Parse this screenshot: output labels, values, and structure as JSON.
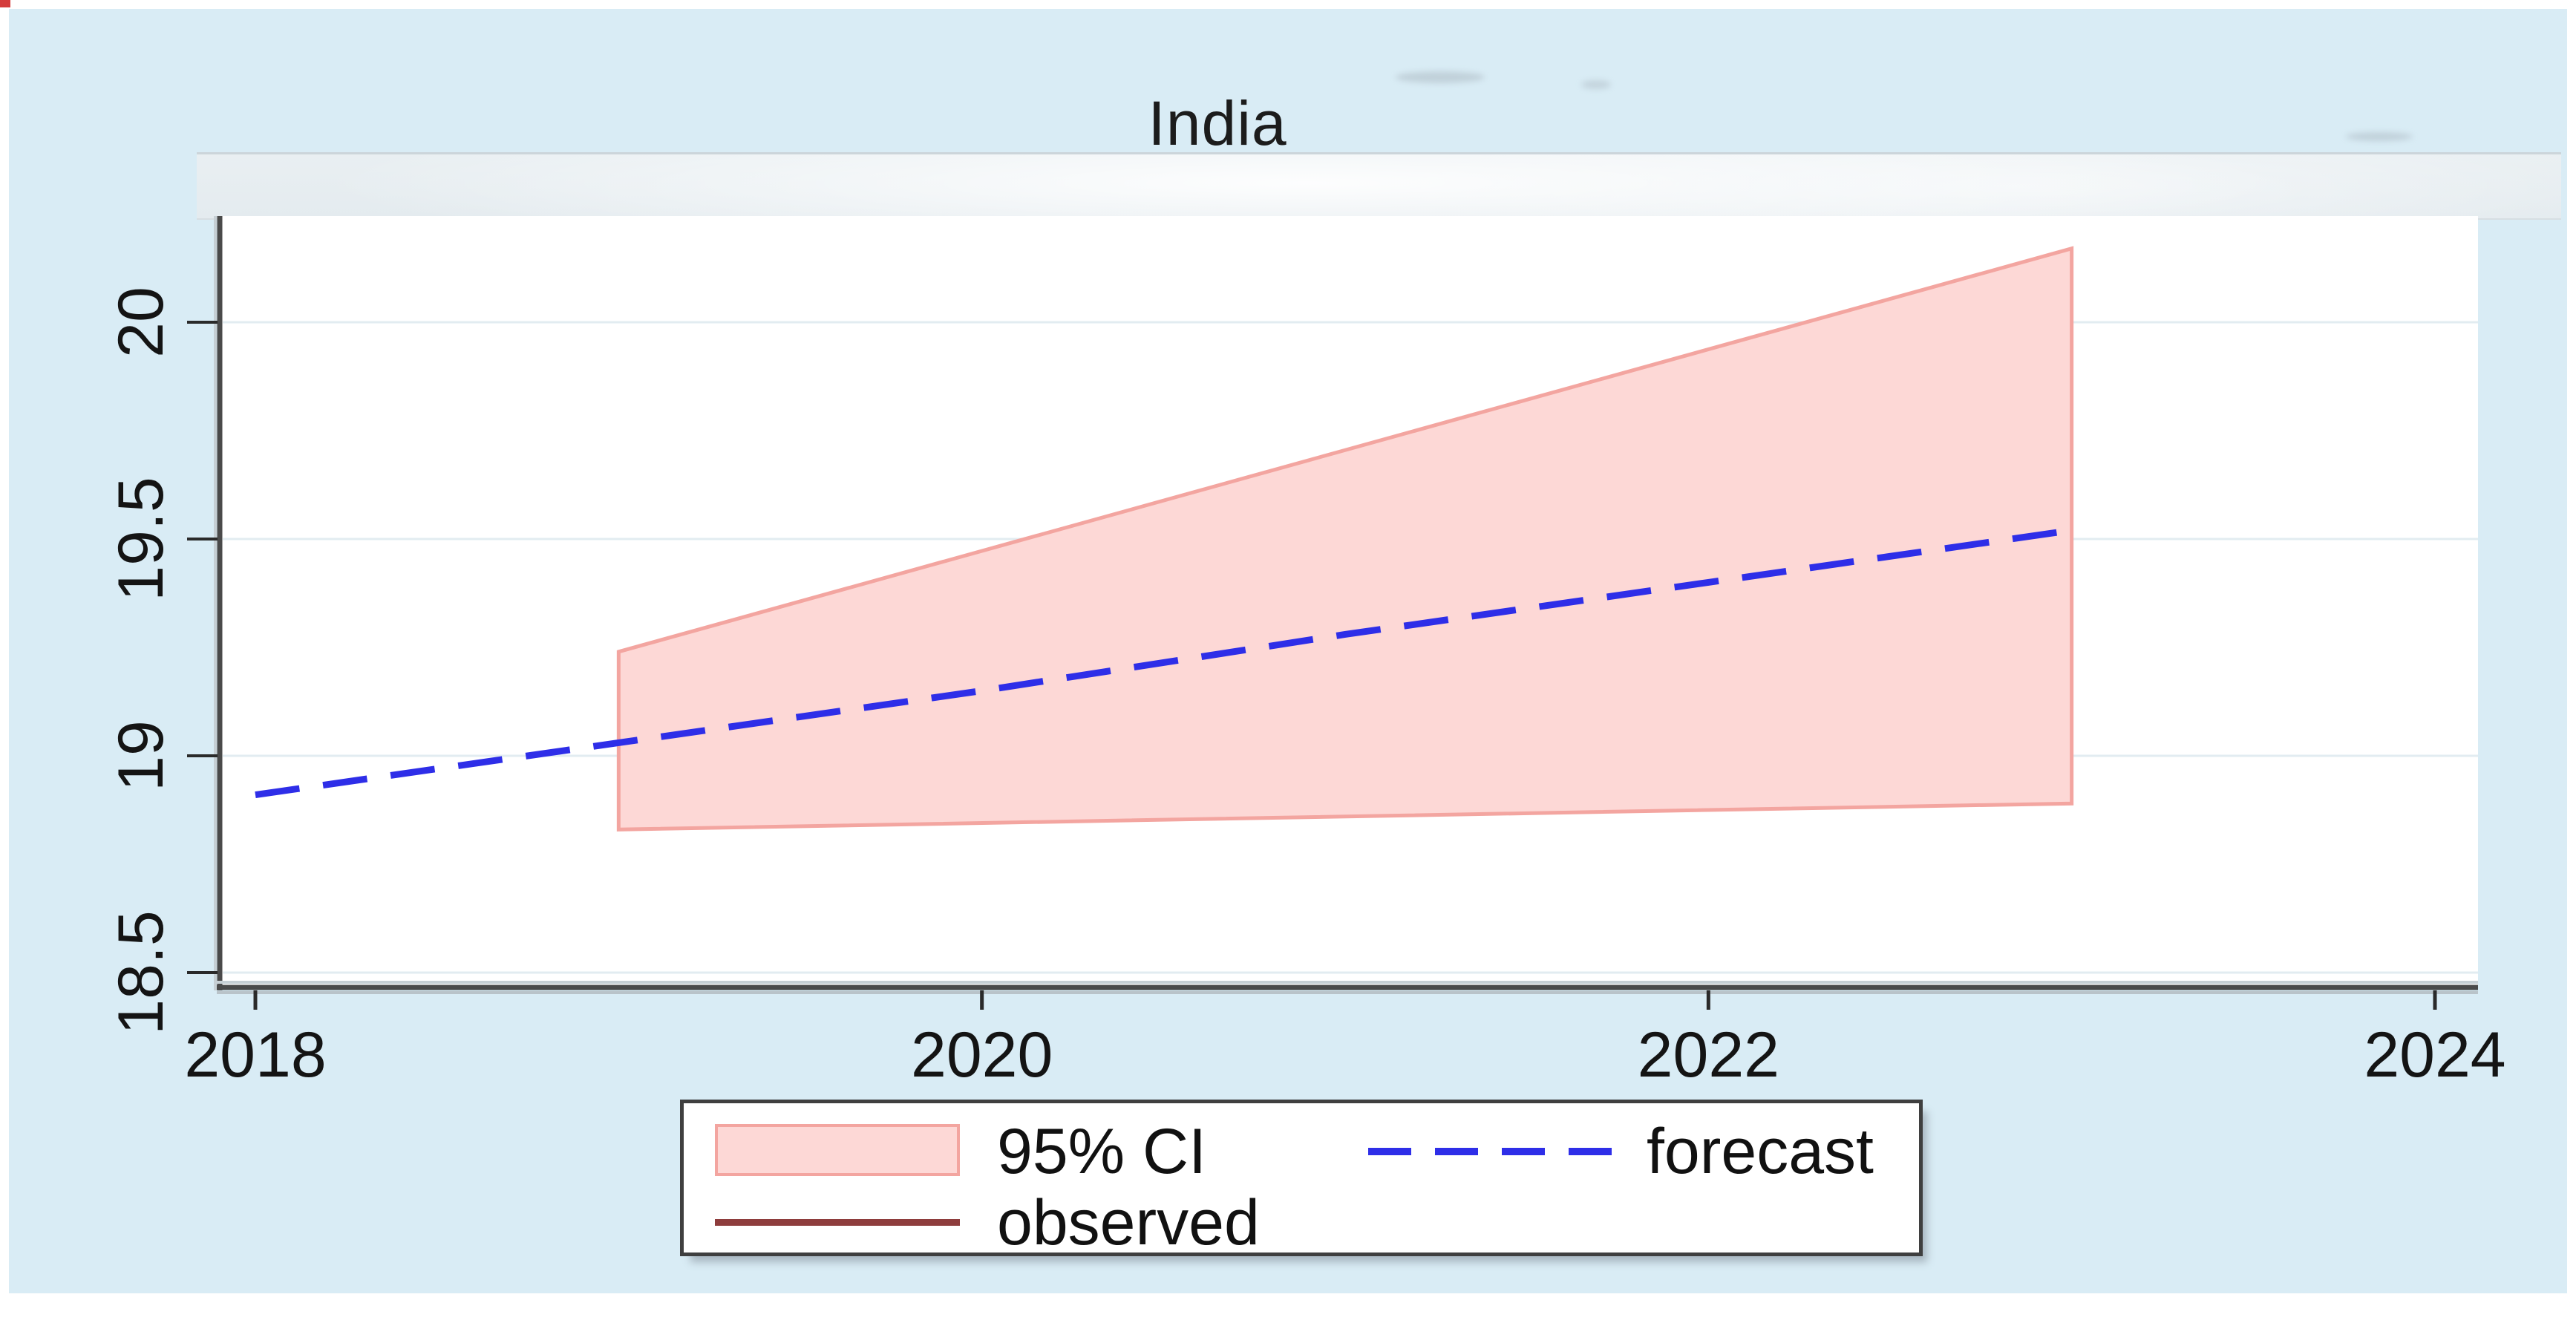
{
  "chart": {
    "title": "India",
    "background_color": "#d9ecf5",
    "plot_background_color": "#ffffff",
    "legend": [
      {
        "label": "95% CI",
        "swatch": "pink-area"
      },
      {
        "label": "forecast",
        "swatch": "blue-dashed-line"
      },
      {
        "label": "observed",
        "swatch": "maroon-solid-line"
      }
    ]
  },
  "chart_data": {
    "type": "line",
    "title": "India",
    "xlabel": "",
    "ylabel": "",
    "xticks": [
      2018,
      2020,
      2022,
      2024
    ],
    "xtick_labels": [
      "2018",
      "2020",
      "2022",
      "2024"
    ],
    "yticks": [
      20,
      19.5,
      19,
      18.5
    ],
    "ytick_labels": [
      "20",
      "19.5",
      "19",
      "18.5"
    ],
    "xlim": [
      2017.9,
      2024.1
    ],
    "ylim": [
      18.3,
      20.35
    ],
    "grid": "horizontal",
    "legend_position": "below-plot-center",
    "series": [
      {
        "name": "forecast",
        "style": "dashed-line",
        "color": "#2e2ee8",
        "x": [
          2018,
          2019,
          2020,
          2021,
          2022,
          2023
        ],
        "values": [
          18.91,
          19.03,
          19.15,
          19.28,
          19.4,
          19.52
        ]
      },
      {
        "name": "95% CI",
        "style": "band",
        "fill": "#fdd8d6",
        "edge": "#f3a5a0",
        "x": [
          2019,
          2023
        ],
        "upper": [
          19.24,
          20.17
        ],
        "lower": [
          18.83,
          18.89
        ]
      },
      {
        "name": "observed",
        "style": "solid-line",
        "color": "#8e3d3d",
        "x": [],
        "values": []
      }
    ]
  }
}
